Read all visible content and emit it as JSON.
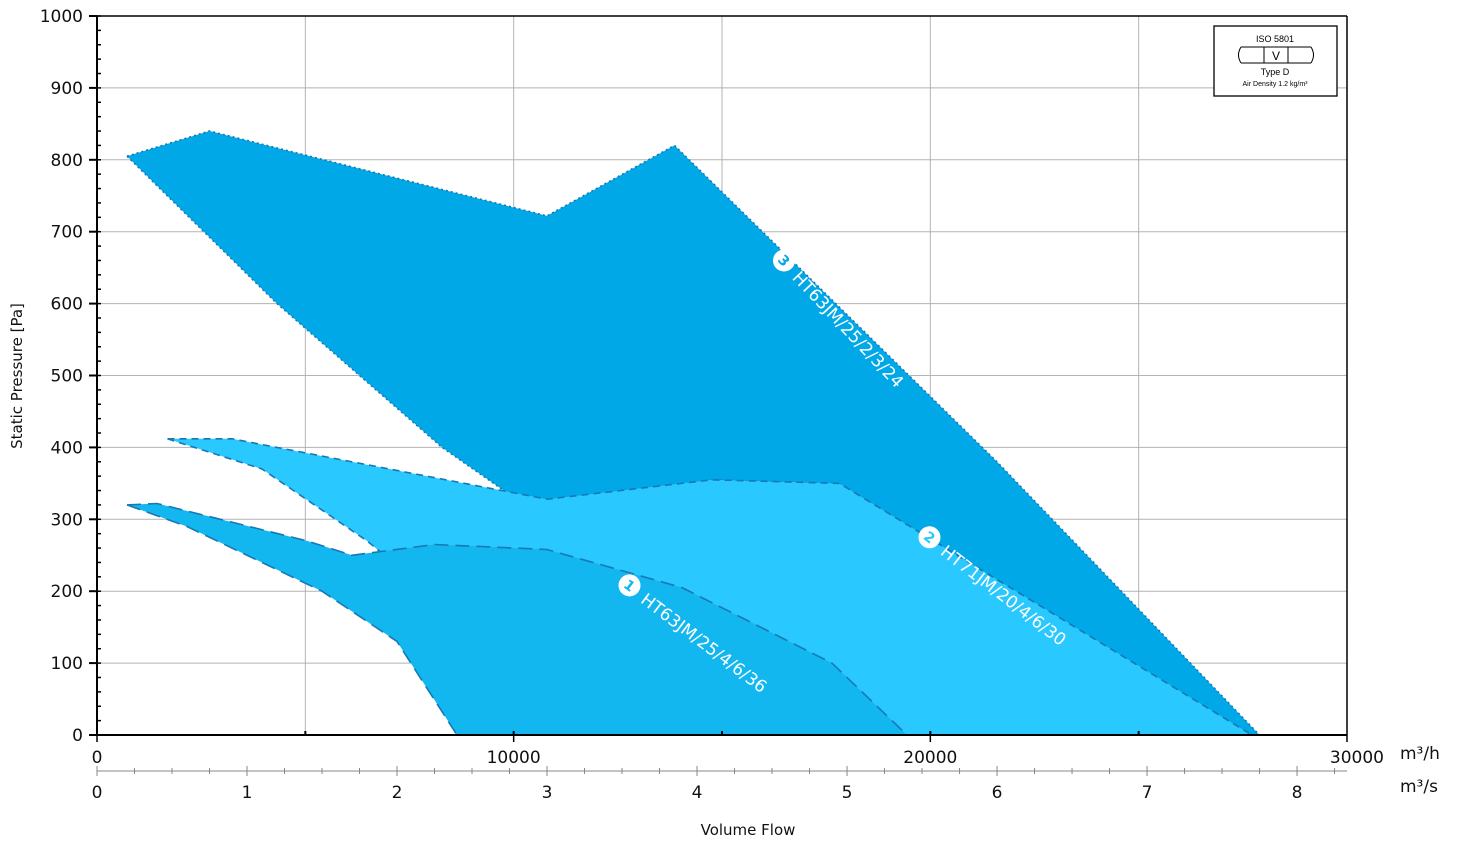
{
  "chart_data": {
    "type": "area",
    "ylabel": "Static Pressure [Pa]",
    "xlabel": "Volume Flow",
    "ylim": [
      0,
      1000
    ],
    "xlim_m3h": [
      0,
      30000
    ],
    "xlim_m3s": [
      0,
      8.333
    ],
    "y_ticks": [
      0,
      100,
      200,
      300,
      400,
      500,
      600,
      700,
      800,
      900,
      1000
    ],
    "y_tick_labels": [
      "0",
      "100",
      "200",
      "300",
      "400",
      "500",
      "600",
      "700",
      "800",
      "900",
      "1000"
    ],
    "x_ticks_m3h": [
      0,
      10000,
      20000,
      30000
    ],
    "x_tick_labels_m3h": [
      "0",
      "10000",
      "20000",
      "30000"
    ],
    "x_ticks_m3s": [
      0,
      1,
      2,
      3,
      4,
      5,
      6,
      7,
      8
    ],
    "x_tick_labels_m3s": [
      "0",
      "1",
      "2",
      "3",
      "4",
      "5",
      "6",
      "7",
      "8"
    ],
    "unit_m3h": "m³/h",
    "unit_m3s": "m³/s",
    "grid": true,
    "series": [
      {
        "name": "HT63JM/25/2/3/24",
        "badge": "3",
        "color": "#00a8e8",
        "line_style": "dotted",
        "x_unit": "m3/s",
        "upper": [
          [
            0.2,
            805
          ],
          [
            0.75,
            840
          ],
          [
            3.0,
            722
          ],
          [
            3.85,
            820
          ],
          [
            6.0,
            380
          ],
          [
            7.75,
            0
          ]
        ],
        "lower": [
          [
            0.2,
            805
          ],
          [
            1.2,
            600
          ],
          [
            2.3,
            400
          ],
          [
            2.85,
            320
          ],
          [
            3.6,
            100
          ],
          [
            3.95,
            0
          ]
        ],
        "inner": [
          [
            3.2,
            325
          ],
          [
            4.1,
            355
          ],
          [
            4.95,
            350
          ],
          [
            7.65,
            0
          ]
        ]
      },
      {
        "name": "HT71JM/20/4/6/30",
        "badge": "2",
        "color": "#29c8ff",
        "line_style": "dashed",
        "x_unit": "m3/s",
        "upper": [
          [
            0.47,
            412
          ],
          [
            0.9,
            412
          ],
          [
            2.2,
            360
          ],
          [
            3.0,
            328
          ],
          [
            4.1,
            355
          ],
          [
            4.95,
            350
          ],
          [
            7.7,
            0
          ]
        ],
        "lower": [
          [
            0.47,
            412
          ],
          [
            1.1,
            370
          ],
          [
            1.8,
            270
          ],
          [
            2.5,
            150
          ],
          [
            3.1,
            0
          ]
        ],
        "inner": []
      },
      {
        "name": "HT63JM/25/4/6/36",
        "badge": "1",
        "color": "#12b7f0",
        "line_style": "long-dashed",
        "x_unit": "m3/s",
        "upper": [
          [
            0.2,
            320
          ],
          [
            0.4,
            322
          ],
          [
            1.4,
            270
          ],
          [
            1.7,
            250
          ],
          [
            2.25,
            265
          ],
          [
            3.0,
            258
          ],
          [
            3.9,
            205
          ],
          [
            4.9,
            100
          ],
          [
            5.4,
            0
          ]
        ],
        "lower": [
          [
            0.2,
            320
          ],
          [
            0.6,
            290
          ],
          [
            1.5,
            200
          ],
          [
            2.0,
            130
          ],
          [
            2.4,
            0
          ]
        ],
        "inner": []
      }
    ]
  },
  "iso_box": {
    "standard": "ISO 5801",
    "category": "V",
    "type": "Type D",
    "density": "Air Density 1.2 kg/m³"
  }
}
